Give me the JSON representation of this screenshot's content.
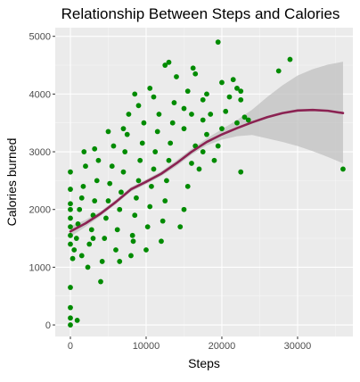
{
  "chart_data": {
    "type": "scatter",
    "title": "Relationship Between Steps and Calories",
    "xlabel": "Steps",
    "ylabel": "Calories burned",
    "xlim": [
      -2000,
      37300
    ],
    "ylim": [
      -200,
      5150
    ],
    "x_ticks": [
      0,
      10000,
      20000,
      30000
    ],
    "x_tick_labels": [
      "0",
      "10000",
      "20000",
      "30000"
    ],
    "y_ticks": [
      0,
      1000,
      2000,
      3000,
      4000,
      5000
    ],
    "y_tick_labels": [
      "0",
      "1000",
      "2000",
      "3000",
      "4000",
      "5000"
    ],
    "grid": true,
    "legend": "none",
    "colors": {
      "panel_background": "#ebebeb",
      "grid_major": "#ffffff",
      "grid_minor": "#f5f5f5",
      "points": "#008b00",
      "smooth_line": "#8b2252",
      "confidence_band": "#c0c0c0",
      "tick": "#333333"
    },
    "series": [
      {
        "type": "scatter",
        "points": [
          [
            0,
            0
          ],
          [
            0,
            120
          ],
          [
            0,
            300
          ],
          [
            0,
            650
          ],
          [
            900,
            80
          ],
          [
            0,
            1400
          ],
          [
            0,
            1550
          ],
          [
            0,
            1700
          ],
          [
            0,
            1850
          ],
          [
            0,
            2000
          ],
          [
            0,
            2100
          ],
          [
            0,
            2350
          ],
          [
            0,
            2650
          ],
          [
            300,
            1150
          ],
          [
            500,
            1300
          ],
          [
            800,
            1500
          ],
          [
            1000,
            1750
          ],
          [
            1200,
            2000
          ],
          [
            1500,
            2200
          ],
          [
            1700,
            2400
          ],
          [
            2000,
            2750
          ],
          [
            1800,
            3000
          ],
          [
            1500,
            1200
          ],
          [
            2300,
            1000
          ],
          [
            2500,
            1400
          ],
          [
            2800,
            1650
          ],
          [
            3000,
            1900
          ],
          [
            3200,
            2150
          ],
          [
            3500,
            2500
          ],
          [
            3700,
            2850
          ],
          [
            3200,
            3050
          ],
          [
            3000,
            1500
          ],
          [
            4000,
            750
          ],
          [
            4200,
            1100
          ],
          [
            4500,
            1500
          ],
          [
            4700,
            1850
          ],
          [
            5000,
            2150
          ],
          [
            5200,
            2450
          ],
          [
            5500,
            2750
          ],
          [
            5700,
            3100
          ],
          [
            5000,
            3350
          ],
          [
            6000,
            1300
          ],
          [
            6200,
            1650
          ],
          [
            6500,
            2000
          ],
          [
            6700,
            2300
          ],
          [
            7000,
            2650
          ],
          [
            7200,
            3000
          ],
          [
            7500,
            3300
          ],
          [
            7700,
            3650
          ],
          [
            7000,
            3400
          ],
          [
            6500,
            1100
          ],
          [
            8000,
            1200
          ],
          [
            8200,
            1550
          ],
          [
            8500,
            1900
          ],
          [
            8700,
            2200
          ],
          [
            9000,
            2500
          ],
          [
            9200,
            2850
          ],
          [
            9500,
            3150
          ],
          [
            9700,
            3500
          ],
          [
            9000,
            3800
          ],
          [
            8500,
            4000
          ],
          [
            8300,
            1450
          ],
          [
            10000,
            1300
          ],
          [
            10200,
            1700
          ],
          [
            10500,
            2050
          ],
          [
            10700,
            2400
          ],
          [
            11000,
            2700
          ],
          [
            11200,
            3000
          ],
          [
            11500,
            3350
          ],
          [
            11700,
            3650
          ],
          [
            11000,
            3950
          ],
          [
            10500,
            4100
          ],
          [
            12000,
            1450
          ],
          [
            12200,
            1800
          ],
          [
            12500,
            2150
          ],
          [
            12700,
            2500
          ],
          [
            13000,
            2850
          ],
          [
            13200,
            3150
          ],
          [
            13500,
            3500
          ],
          [
            13700,
            3850
          ],
          [
            12500,
            4500
          ],
          [
            13000,
            4550
          ],
          [
            14000,
            4300
          ],
          [
            14500,
            1700
          ],
          [
            15000,
            2000
          ],
          [
            15500,
            2400
          ],
          [
            16000,
            2800
          ],
          [
            16500,
            3100
          ],
          [
            15000,
            3400
          ],
          [
            16000,
            3650
          ],
          [
            15500,
            4050
          ],
          [
            16200,
            4450
          ],
          [
            15000,
            3750
          ],
          [
            17000,
            2700
          ],
          [
            17500,
            3000
          ],
          [
            18000,
            3300
          ],
          [
            18500,
            3650
          ],
          [
            17500,
            3900
          ],
          [
            18000,
            4000
          ],
          [
            16500,
            4350
          ],
          [
            17500,
            3550
          ],
          [
            19000,
            2850
          ],
          [
            19500,
            3100
          ],
          [
            20000,
            3400
          ],
          [
            20500,
            3700
          ],
          [
            21000,
            3950
          ],
          [
            22000,
            4100
          ],
          [
            22500,
            4050
          ],
          [
            23000,
            3600
          ],
          [
            23500,
            3550
          ],
          [
            22000,
            3500
          ],
          [
            22500,
            2650
          ],
          [
            19500,
            4900
          ],
          [
            20000,
            4200
          ],
          [
            21500,
            4250
          ],
          [
            22500,
            3900
          ],
          [
            27500,
            4400
          ],
          [
            29000,
            4600
          ],
          [
            36000,
            2700
          ]
        ]
      },
      {
        "type": "smooth_line",
        "x": [
          0,
          2000,
          4000,
          6000,
          8000,
          10000,
          12000,
          14000,
          16000,
          18000,
          20000,
          22000,
          24000,
          26000,
          28000,
          30000,
          32000,
          34000,
          36000
        ],
        "y": [
          1620,
          1760,
          1930,
          2130,
          2350,
          2480,
          2620,
          2800,
          3000,
          3170,
          3300,
          3410,
          3510,
          3600,
          3670,
          3715,
          3725,
          3710,
          3670
        ],
        "band_low": [
          1530,
          1700,
          1890,
          2090,
          2310,
          2440,
          2580,
          2750,
          2950,
          3110,
          3210,
          3270,
          3290,
          3230,
          3170,
          3100,
          3010,
          2910,
          2800
        ],
        "band_high": [
          1710,
          1820,
          1970,
          2170,
          2390,
          2520,
          2660,
          2850,
          3050,
          3230,
          3390,
          3550,
          3730,
          3950,
          4150,
          4320,
          4430,
          4510,
          4560
        ]
      }
    ]
  }
}
